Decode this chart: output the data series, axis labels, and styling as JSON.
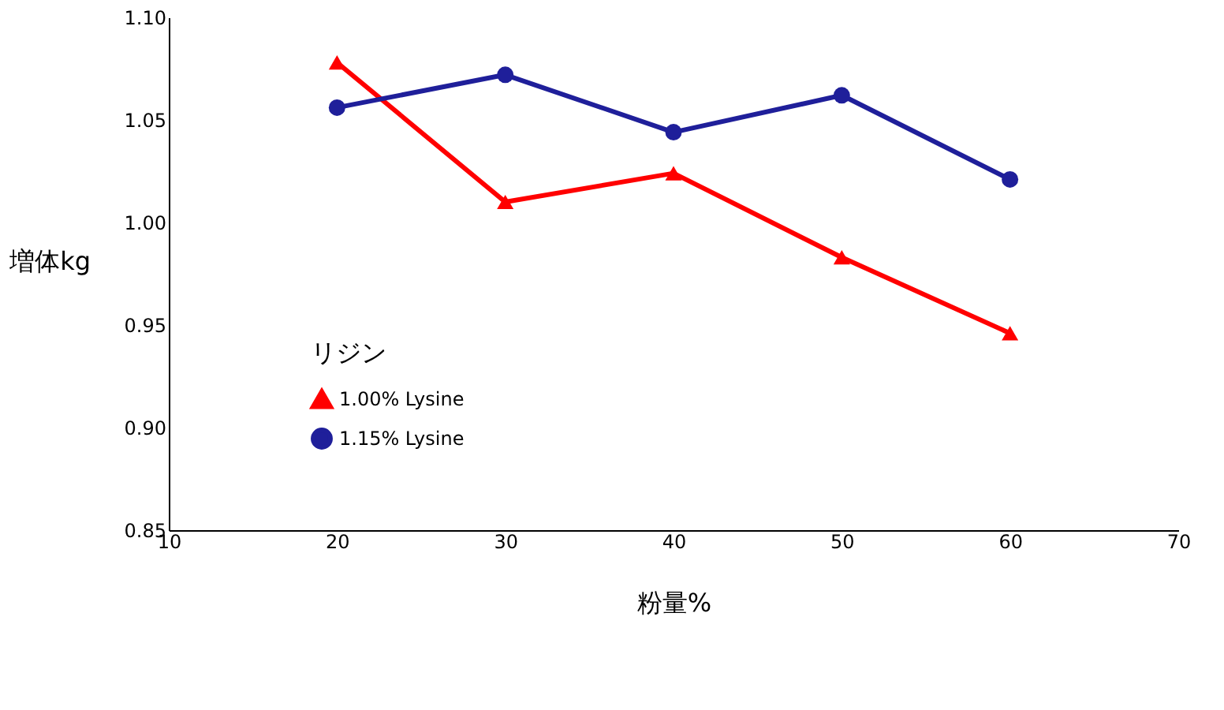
{
  "chart_data": {
    "type": "line",
    "xlabel": "粉量%",
    "ylabel": "増体kg",
    "legend_title": "リジン",
    "x": [
      20,
      30,
      40,
      50,
      60
    ],
    "series": [
      {
        "name": "1.00% Lysine",
        "color": "#ff0000",
        "marker": "triangle",
        "values": [
          1.078,
          1.01,
          1.024,
          0.983,
          0.946
        ]
      },
      {
        "name": "1.15% Lysine",
        "color": "#1f1f9a",
        "marker": "circle",
        "values": [
          1.056,
          1.072,
          1.044,
          1.062,
          1.021
        ]
      }
    ],
    "xlim": [
      10,
      70
    ],
    "xticks": [
      10,
      20,
      30,
      40,
      50,
      60,
      70
    ],
    "ylim": [
      0.85,
      1.1
    ],
    "yticks": [
      0.85,
      {
        "value": 0.9,
        "label": "0.90"
      },
      0.95,
      {
        "value": 1.0,
        "label": "1.00"
      },
      1.05,
      {
        "value": 1.1,
        "label": "1.10"
      }
    ],
    "grid": false,
    "legend": "bottom left"
  }
}
